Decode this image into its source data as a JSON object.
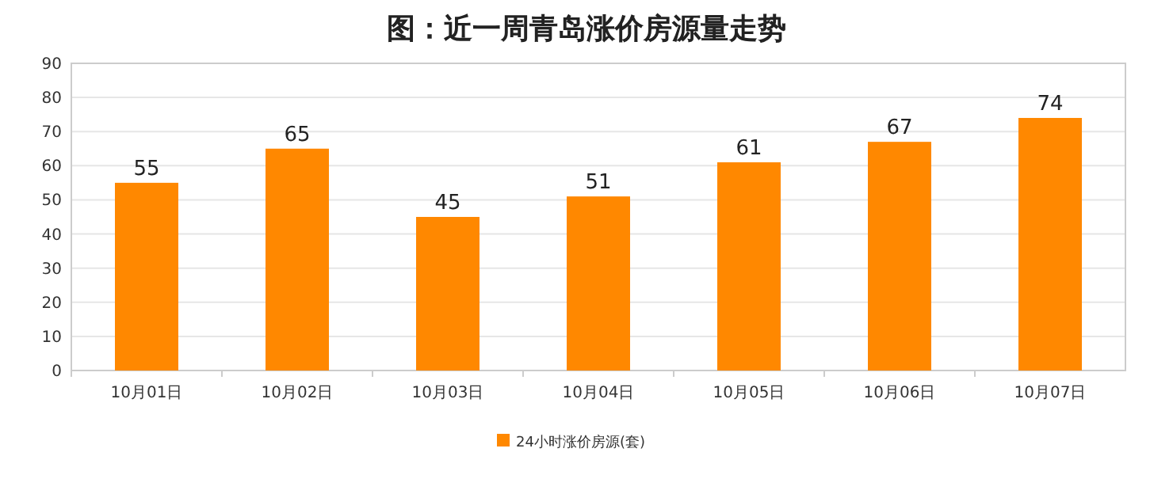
{
  "chart_data": {
    "type": "bar",
    "title": "图：近一周青岛涨价房源量走势",
    "categories": [
      "10月01日",
      "10月02日",
      "10月03日",
      "10月04日",
      "10月05日",
      "10月06日",
      "10月07日"
    ],
    "series": [
      {
        "name": "24小时涨价房源(套)",
        "color": "#ff8800",
        "values": [
          55,
          65,
          45,
          51,
          61,
          67,
          74
        ]
      }
    ],
    "ylim": [
      0,
      90
    ],
    "yticks": [
      0,
      10,
      20,
      30,
      40,
      50,
      60,
      70,
      80,
      90
    ],
    "grid": "y",
    "legend": "bottom",
    "data_labels": true
  }
}
